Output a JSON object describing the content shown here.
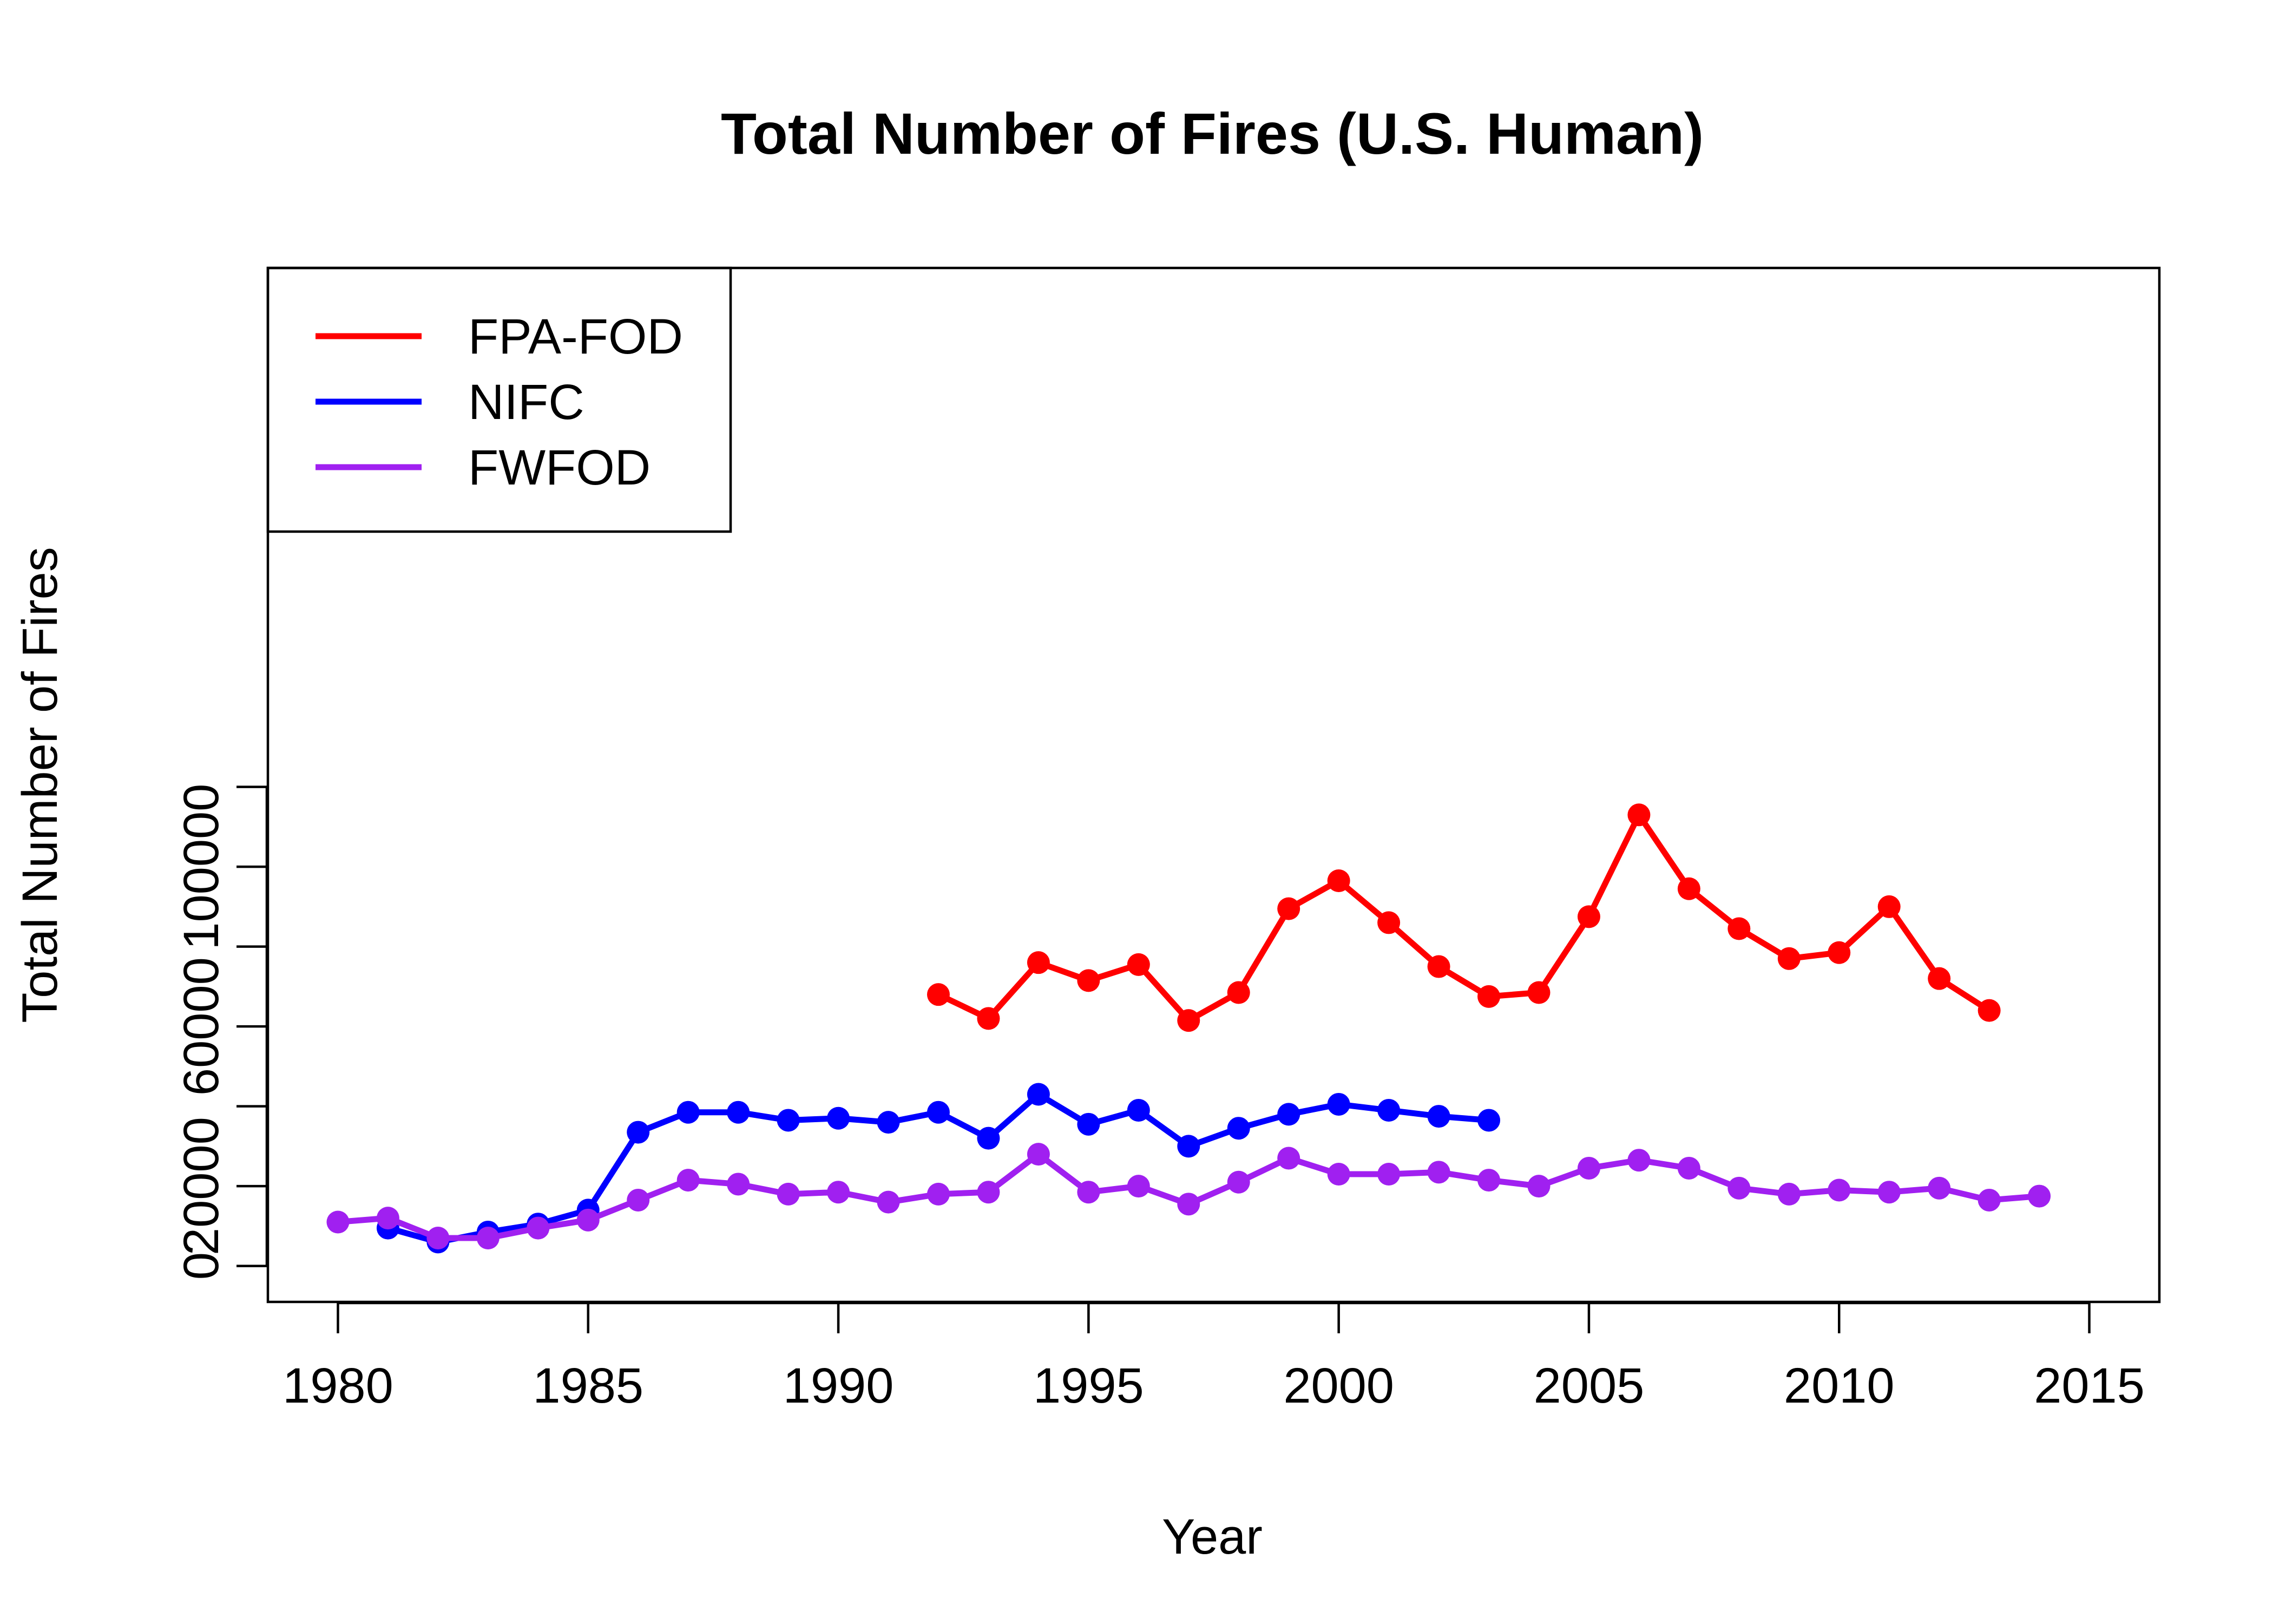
{
  "chart_data": {
    "type": "line",
    "title": "Total Number of Fires (U.S. Human)",
    "xlabel": "Year",
    "ylabel": "Total Number of Fires",
    "xlim": [
      1978.6,
      2016.4
    ],
    "ylim": [
      -9000,
      250000
    ],
    "x_ticks": [
      1980,
      1985,
      1990,
      1995,
      2000,
      2005,
      2010,
      2015
    ],
    "y_ticks": [
      0,
      20000,
      40000,
      60000,
      80000,
      100000,
      120000
    ],
    "y_tick_labels": [
      "0",
      "20000",
      "",
      "60000",
      "",
      "100000",
      ""
    ],
    "legend_position": "top-left",
    "grid": false,
    "series": [
      {
        "name": "FPA-FOD",
        "color": "#ff0000",
        "x": [
          1992,
          1993,
          1994,
          1995,
          1996,
          1997,
          1998,
          1999,
          2000,
          2001,
          2002,
          2003,
          2004,
          2005,
          2006,
          2007,
          2008,
          2009,
          2010,
          2011,
          2012,
          2013
        ],
        "values": [
          68000,
          62000,
          76000,
          71500,
          75500,
          61500,
          68500,
          89500,
          96500,
          86000,
          75000,
          67500,
          68500,
          87500,
          113000,
          94500,
          84500,
          77000,
          78500,
          90000,
          72000,
          64000
        ]
      },
      {
        "name": "NIFC",
        "color": "#0000ff",
        "x": [
          1981,
          1982,
          1983,
          1984,
          1985,
          1986,
          1987,
          1988,
          1989,
          1990,
          1991,
          1992,
          1993,
          1994,
          1995,
          1996,
          1997,
          1998,
          1999,
          2000,
          2001,
          2002,
          2003
        ],
        "values": [
          9500,
          6000,
          8500,
          10500,
          14000,
          33500,
          38500,
          38500,
          36500,
          37000,
          36000,
          38500,
          32000,
          43000,
          35500,
          39000,
          30000,
          34500,
          38000,
          40500,
          39000,
          37500,
          36500
        ]
      },
      {
        "name": "FWFOD",
        "color": "#a020f0",
        "x": [
          1980,
          1981,
          1982,
          1983,
          1984,
          1985,
          1986,
          1987,
          1988,
          1989,
          1990,
          1991,
          1992,
          1993,
          1994,
          1995,
          1996,
          1997,
          1998,
          1999,
          2000,
          2001,
          2002,
          2003,
          2004,
          2005,
          2006,
          2007,
          2008,
          2009,
          2010,
          2011,
          2012,
          2013,
          2014
        ],
        "values": [
          11000,
          12000,
          7000,
          7000,
          9500,
          11500,
          16500,
          21500,
          20500,
          18000,
          18500,
          16000,
          18000,
          18500,
          28000,
          18500,
          20000,
          15500,
          21000,
          27000,
          23000,
          23000,
          23500,
          21500,
          20000,
          24500,
          26500,
          24500,
          19500,
          18000,
          19000,
          18500,
          19500,
          16500,
          17500
        ]
      }
    ]
  }
}
